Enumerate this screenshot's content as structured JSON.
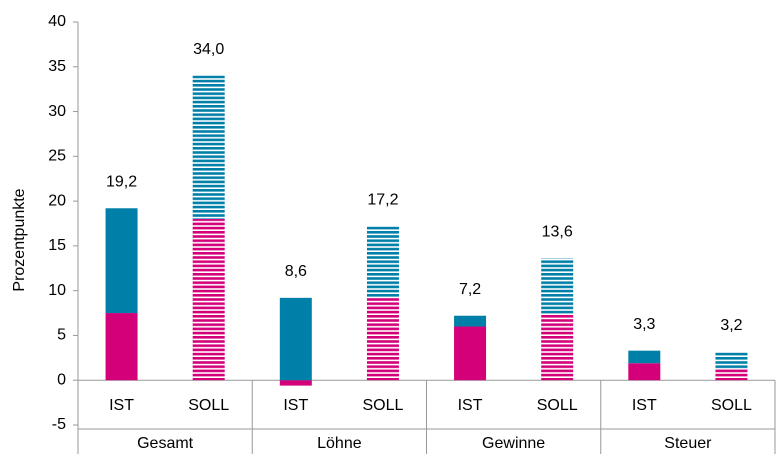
{
  "chart_data": {
    "type": "stacked-bar",
    "y_label": "Prozentpunkte",
    "groups": [
      "Gesamt",
      "Löhne",
      "Gewinne",
      "Steuer"
    ],
    "categories": [
      "IST",
      "SOLL",
      "IST",
      "SOLL",
      "IST",
      "SOLL",
      "IST",
      "SOLL"
    ],
    "striped": [
      false,
      true,
      false,
      true,
      false,
      true,
      false,
      true
    ],
    "series": [
      {
        "color": "#d4007a",
        "values": [
          7.5,
          18.0,
          -0.6,
          9.2,
          6.0,
          7.3,
          1.9,
          1.2
        ]
      },
      {
        "color": "#0080a8",
        "values": [
          11.7,
          16.0,
          9.2,
          8.0,
          1.2,
          6.3,
          1.4,
          2.0
        ]
      }
    ],
    "totals": [
      19.2,
      34.0,
      8.6,
      17.2,
      7.2,
      13.6,
      3.3,
      3.2
    ],
    "total_labels": [
      "19,2",
      "34,0",
      "8,6",
      "17,2",
      "7,2",
      "13,6",
      "3,3",
      "3,2"
    ],
    "ylim": [
      -5,
      40
    ],
    "yticks": [
      -5,
      0,
      5,
      10,
      15,
      20,
      25,
      30,
      35,
      40
    ]
  }
}
